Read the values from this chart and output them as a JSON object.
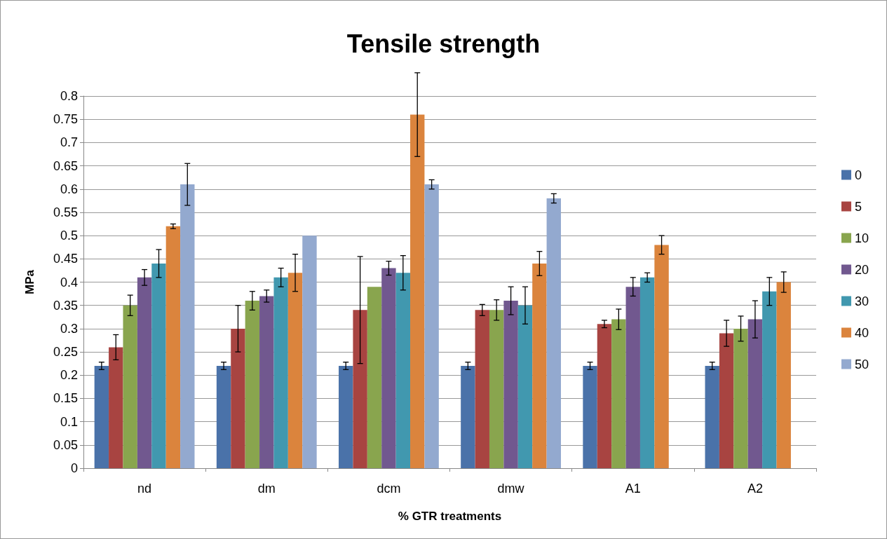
{
  "chart_data": {
    "type": "bar",
    "title": "Tensile strength",
    "xlabel": "% GTR treatments",
    "ylabel": "MPa",
    "categories": [
      "nd",
      "dm",
      "dcm",
      "dmw",
      "A1",
      "A2"
    ],
    "series": [
      {
        "name": "0",
        "color": "#4a72a9",
        "values": [
          0.22,
          0.22,
          0.22,
          0.22,
          0.22,
          0.22
        ],
        "errors": [
          0.008,
          0.008,
          0.008,
          0.008,
          0.008,
          0.008
        ]
      },
      {
        "name": "5",
        "color": "#a84441",
        "values": [
          0.26,
          0.3,
          0.34,
          0.34,
          0.31,
          0.29
        ],
        "errors": [
          0.027,
          0.05,
          0.115,
          0.012,
          0.008,
          0.028
        ]
      },
      {
        "name": "10",
        "color": "#89a54e",
        "values": [
          0.35,
          0.36,
          0.39,
          0.34,
          0.32,
          0.3
        ],
        "errors": [
          0.022,
          0.02,
          null,
          0.022,
          0.022,
          0.027
        ]
      },
      {
        "name": "20",
        "color": "#71588f",
        "values": [
          0.41,
          0.37,
          0.43,
          0.36,
          0.39,
          0.32
        ],
        "errors": [
          0.017,
          0.013,
          0.015,
          0.03,
          0.02,
          0.04
        ]
      },
      {
        "name": "30",
        "color": "#4198af",
        "values": [
          0.44,
          0.41,
          0.42,
          0.35,
          0.41,
          0.38
        ],
        "errors": [
          0.03,
          0.02,
          0.037,
          0.04,
          0.01,
          0.03
        ]
      },
      {
        "name": "40",
        "color": "#db843d",
        "values": [
          0.52,
          0.42,
          0.76,
          0.44,
          0.48,
          0.4
        ],
        "errors": [
          0.005,
          0.04,
          0.09,
          0.026,
          0.02,
          0.022
        ]
      },
      {
        "name": "50",
        "color": "#93a9cf",
        "values": [
          0.61,
          0.5,
          0.61,
          0.58,
          null,
          null
        ],
        "errors": [
          0.045,
          null,
          0.01,
          0.01,
          null,
          null
        ]
      }
    ],
    "ylim": [
      0,
      0.8
    ],
    "yticks": [
      0,
      0.05,
      0.1,
      0.15,
      0.2,
      0.25,
      0.3,
      0.35,
      0.4,
      0.45,
      0.5,
      0.55,
      0.6,
      0.65,
      0.7,
      0.75,
      0.8
    ],
    "grid": "y",
    "legend": "right"
  }
}
